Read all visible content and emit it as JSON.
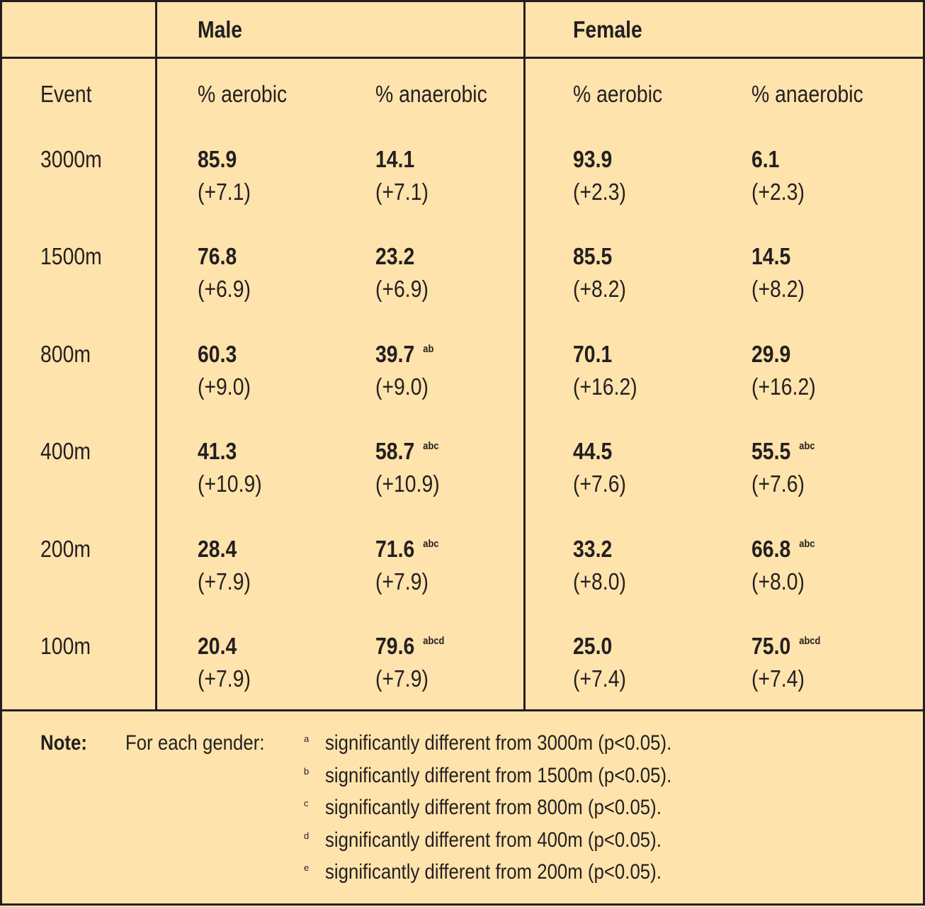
{
  "groups": [
    {
      "label": "Male"
    },
    {
      "label": "Female"
    }
  ],
  "columns": {
    "event": "Event",
    "male_aerobic": "% aerobic",
    "male_anaerobic": "% anaerobic",
    "female_aerobic": "% aerobic",
    "female_anaerobic": "% anaerobic"
  },
  "rows": [
    {
      "event": "3000m",
      "male_aerobic": "85.9",
      "male_aerobic_sd": "(+7.1)",
      "male_anaerobic": "14.1",
      "male_anaerobic_sig": "",
      "male_anaerobic_sd": "(+7.1)",
      "female_aerobic": "93.9",
      "female_aerobic_sd": "(+2.3)",
      "female_anaerobic": "6.1",
      "female_anaerobic_sig": "",
      "female_anaerobic_sd": "(+2.3)"
    },
    {
      "event": "1500m",
      "male_aerobic": "76.8",
      "male_aerobic_sd": "(+6.9)",
      "male_anaerobic": "23.2",
      "male_anaerobic_sig": "",
      "male_anaerobic_sd": "(+6.9)",
      "female_aerobic": "85.5",
      "female_aerobic_sd": "(+8.2)",
      "female_anaerobic": "14.5",
      "female_anaerobic_sig": "",
      "female_anaerobic_sd": "(+8.2)"
    },
    {
      "event": "800m",
      "male_aerobic": "60.3",
      "male_aerobic_sd": "(+9.0)",
      "male_anaerobic": "39.7",
      "male_anaerobic_sig": "ab",
      "male_anaerobic_sd": "(+9.0)",
      "female_aerobic": "70.1",
      "female_aerobic_sd": "(+16.2)",
      "female_anaerobic": "29.9",
      "female_anaerobic_sig": "",
      "female_anaerobic_sd": "(+16.2)"
    },
    {
      "event": "400m",
      "male_aerobic": "41.3",
      "male_aerobic_sd": "(+10.9)",
      "male_anaerobic": "58.7",
      "male_anaerobic_sig": "abc",
      "male_anaerobic_sd": "(+10.9)",
      "female_aerobic": "44.5",
      "female_aerobic_sd": "(+7.6)",
      "female_anaerobic": "55.5",
      "female_anaerobic_sig": "abc",
      "female_anaerobic_sd": "(+7.6)"
    },
    {
      "event": "200m",
      "male_aerobic": "28.4",
      "male_aerobic_sd": "(+7.9)",
      "male_anaerobic": "71.6",
      "male_anaerobic_sig": "abc",
      "male_anaerobic_sd": "(+7.9)",
      "female_aerobic": "33.2",
      "female_aerobic_sd": "(+8.0)",
      "female_anaerobic": "66.8",
      "female_anaerobic_sig": "abc",
      "female_anaerobic_sd": "(+8.0)"
    },
    {
      "event": "100m",
      "male_aerobic": "20.4",
      "male_aerobic_sd": "(+7.9)",
      "male_anaerobic": "79.6",
      "male_anaerobic_sig": "abcd",
      "male_anaerobic_sd": "(+7.9)",
      "female_aerobic": "25.0",
      "female_aerobic_sd": "(+7.4)",
      "female_anaerobic": "75.0",
      "female_anaerobic_sig": "abcd",
      "female_anaerobic_sd": "(+7.4)"
    }
  ],
  "note": {
    "label": "Note:",
    "intro": "For each gender:",
    "items": [
      {
        "marker": "a",
        "text": "significantly different from 3000m (p<0.05)."
      },
      {
        "marker": "b",
        "text": "significantly different from 1500m (p<0.05)."
      },
      {
        "marker": "c",
        "text": "significantly different from 800m (p<0.05)."
      },
      {
        "marker": "d",
        "text": "significantly different from 400m (p<0.05)."
      },
      {
        "marker": "e",
        "text": "significantly different from 200m (p<0.05)."
      }
    ]
  }
}
